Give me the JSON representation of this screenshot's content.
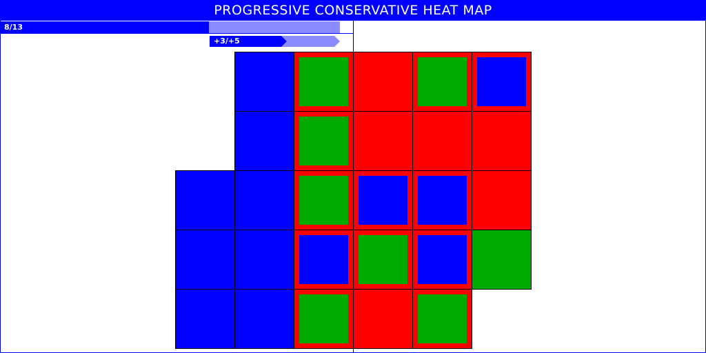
{
  "title": "PROGRESSIVE CONSERVATIVE HEAT MAP",
  "score": {
    "label": "8/13",
    "value": 8,
    "total": 13
  },
  "delta": {
    "label": "+3/+5",
    "left": 3,
    "right": 5
  },
  "colors": {
    "blue": "#0000ff",
    "red": "#ff0000",
    "green": "#00aa00",
    "light_blue": "#8c8cff",
    "title_bg": "#0000ff",
    "title_fg": "#ffffff"
  },
  "heatmap": {
    "rows": [
      [
        null,
        null,
        null,
        {
          "base": "blue"
        },
        {
          "base": "red",
          "inner": "green"
        },
        {
          "base": "red"
        },
        {
          "base": "red",
          "inner": "green"
        },
        {
          "base": "red",
          "inner": "blue"
        }
      ],
      [
        null,
        null,
        null,
        {
          "base": "blue"
        },
        {
          "base": "red",
          "inner": "green"
        },
        {
          "base": "red"
        },
        {
          "base": "red"
        },
        {
          "base": "red"
        }
      ],
      [
        null,
        null,
        {
          "base": "blue"
        },
        {
          "base": "blue"
        },
        {
          "base": "red",
          "inner": "green"
        },
        {
          "base": "red",
          "inner": "blue"
        },
        {
          "base": "red",
          "inner": "blue"
        },
        {
          "base": "red"
        }
      ],
      [
        null,
        null,
        {
          "base": "blue"
        },
        {
          "base": "blue"
        },
        {
          "base": "red",
          "inner": "blue"
        },
        {
          "base": "red",
          "inner": "green"
        },
        {
          "base": "red",
          "inner": "blue"
        },
        {
          "base": "green"
        }
      ],
      [
        null,
        null,
        {
          "base": "blue"
        },
        {
          "base": "blue"
        },
        {
          "base": "red",
          "inner": "green"
        },
        {
          "base": "red"
        },
        {
          "base": "red",
          "inner": "green"
        },
        null
      ]
    ]
  }
}
